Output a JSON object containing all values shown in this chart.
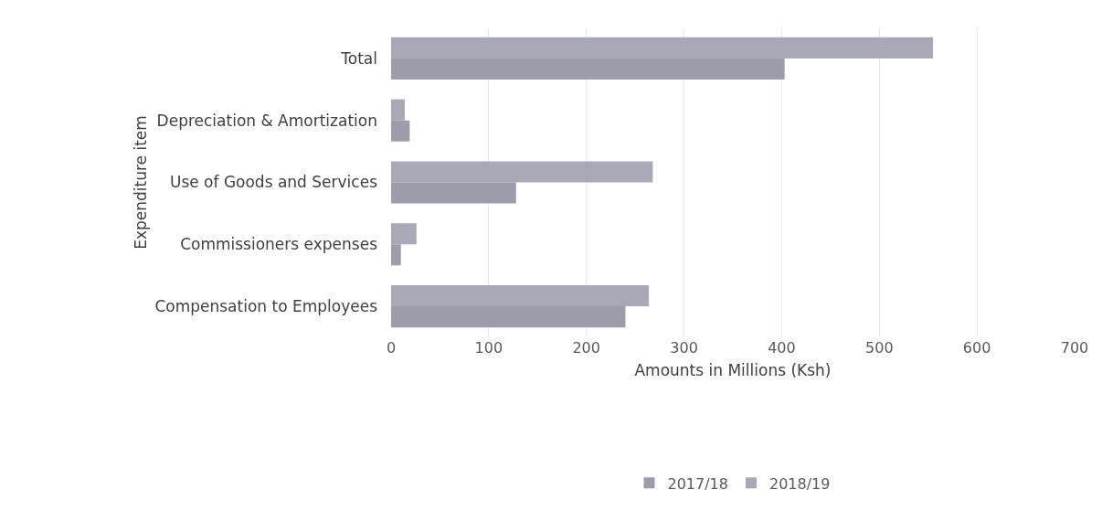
{
  "chart_data": {
    "type": "bar",
    "orientation": "horizontal",
    "xlabel": "Amounts in Millions (Ksh)",
    "ylabel": "Expenditure item",
    "categories": [
      "Total",
      "Depreciation & Amortization",
      "Use of Goods and Services",
      "Commissioners expenses",
      "Compensation to Employees"
    ],
    "series": [
      {
        "name": "2017/18",
        "color": "#9c9cab",
        "values": [
          403,
          19,
          128,
          10,
          240
        ]
      },
      {
        "name": "2018/19",
        "color": "#a8a8b6",
        "values": [
          555,
          14,
          268,
          26,
          264
        ]
      }
    ],
    "xlim": [
      0,
      700
    ],
    "xticks": [
      0,
      100,
      200,
      300,
      400,
      500,
      600,
      700
    ],
    "grid": "x",
    "legend": "bottom"
  }
}
